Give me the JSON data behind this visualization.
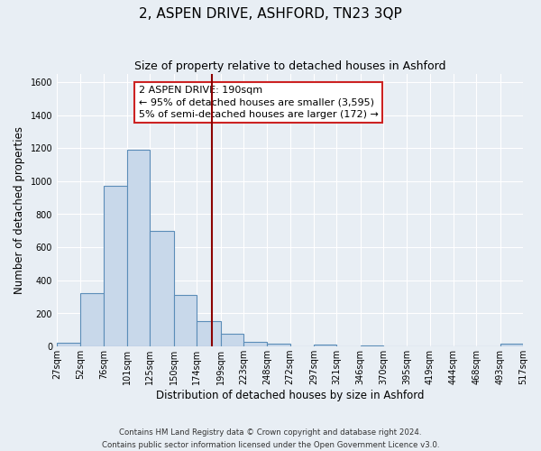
{
  "title": "2, ASPEN DRIVE, ASHFORD, TN23 3QP",
  "subtitle": "Size of property relative to detached houses in Ashford",
  "xlabel": "Distribution of detached houses by size in Ashford",
  "ylabel": "Number of detached properties",
  "bin_edges": [
    27,
    52,
    76,
    101,
    125,
    150,
    174,
    199,
    223,
    248,
    272,
    297,
    321,
    346,
    370,
    395,
    419,
    444,
    468,
    493,
    517
  ],
  "bar_heights": [
    25,
    320,
    970,
    1190,
    700,
    310,
    155,
    75,
    30,
    15,
    0,
    10,
    0,
    5,
    0,
    0,
    0,
    0,
    0,
    15
  ],
  "bar_color": "#c8d8ea",
  "bar_edge_color": "#5b8db8",
  "vline_x": 190,
  "vline_color": "#8b0000",
  "annotation_line1": "2 ASPEN DRIVE: 190sqm",
  "annotation_line2": "← 95% of detached houses are smaller (3,595)",
  "annotation_line3": "5% of semi-detached houses are larger (172) →",
  "footer_text": "Contains HM Land Registry data © Crown copyright and database right 2024.\nContains public sector information licensed under the Open Government Licence v3.0.",
  "xlim_left": 27,
  "xlim_right": 517,
  "ylim_top": 1650,
  "background_color": "#e8eef4",
  "grid_color": "#ffffff",
  "title_fontsize": 11,
  "subtitle_fontsize": 9,
  "xlabel_fontsize": 8.5,
  "ylabel_fontsize": 8.5,
  "tick_fontsize": 7,
  "annotation_fontsize": 8,
  "yticks": [
    0,
    200,
    400,
    600,
    800,
    1000,
    1200,
    1400,
    1600
  ],
  "tick_labels": [
    "27sqm",
    "52sqm",
    "76sqm",
    "101sqm",
    "125sqm",
    "150sqm",
    "174sqm",
    "199sqm",
    "223sqm",
    "248sqm",
    "272sqm",
    "297sqm",
    "321sqm",
    "346sqm",
    "370sqm",
    "395sqm",
    "419sqm",
    "444sqm",
    "468sqm",
    "493sqm",
    "517sqm"
  ]
}
